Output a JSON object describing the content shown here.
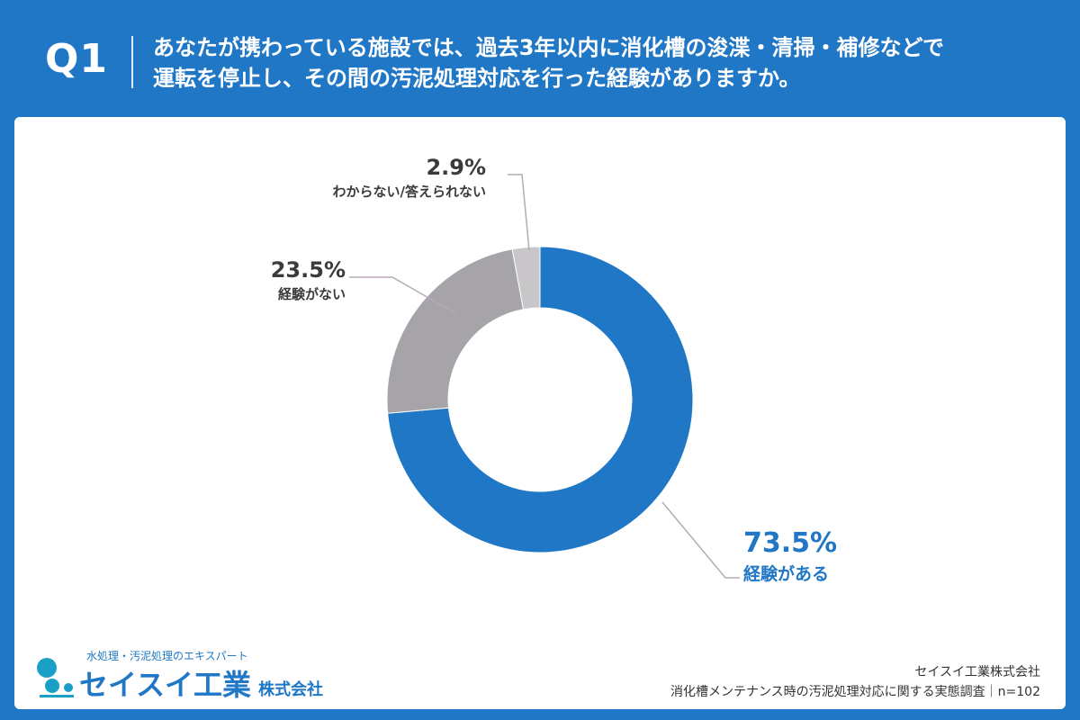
{
  "header": {
    "question_no": "Q1",
    "question_line1": "あなたが携わっている施設では、過去3年以内に消化槽の浚渫・清掃・補修などで",
    "question_line2": "運転を停止し、その間の汚泥処理対応を行った経験がありますか。"
  },
  "chart_data": {
    "type": "pie",
    "variant": "donut",
    "slices": [
      {
        "label": "経験がある",
        "percent_label": "73.5%",
        "value": 73.5,
        "color": "#1f77c6"
      },
      {
        "label": "経験がない",
        "percent_label": "23.5%",
        "value": 23.5,
        "color": "#a6a4a8"
      },
      {
        "label": "わからない/答えられない",
        "percent_label": "2.9%",
        "value": 2.9,
        "color": "#c8c6c9"
      }
    ],
    "start": "top",
    "direction": "clockwise"
  },
  "footer": {
    "logo_tagline": "水処理・汚泥処理のエキスパート",
    "logo_name": "セイスイ工業",
    "logo_suffix": "株式会社",
    "company": "セイスイ工業株式会社",
    "survey_note": "消化槽メンテナンス時の汚泥処理対応に関する実態調査｜n=102"
  },
  "colors": {
    "accent": "#1f77c6",
    "leader": "#b7a9b8"
  }
}
